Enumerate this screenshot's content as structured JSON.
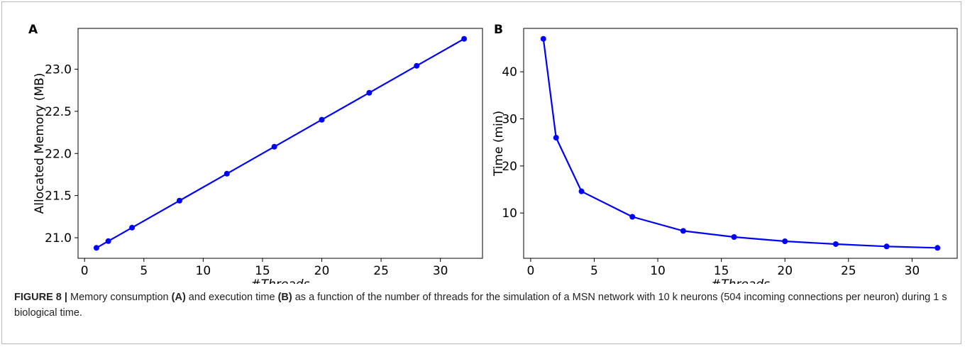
{
  "figure": {
    "caption_label": "FIGURE 8 |",
    "caption_parts": [
      "Memory consumption ",
      "(A)",
      " and execution time ",
      "(B)",
      " as a function of the number of threads for the simulation of a MSN network with 10 k neurons (504 incoming connections per neuron) during 1 s biological time."
    ]
  },
  "colors": {
    "series": "#0000ff",
    "axes": "#000000",
    "frame": "#b8b8b8"
  },
  "chart_data": [
    {
      "panel_label": "A",
      "type": "line",
      "xlabel": "#Threads",
      "ylabel": "Allocated Memory (MB)",
      "x": [
        1,
        2,
        4,
        8,
        12,
        16,
        20,
        24,
        28,
        32
      ],
      "y": [
        20.88,
        20.96,
        21.12,
        21.44,
        21.76,
        22.08,
        22.4,
        22.72,
        23.04,
        23.36
      ],
      "xticks": [
        0,
        5,
        10,
        15,
        20,
        25,
        30
      ],
      "yticks": [
        21.0,
        21.5,
        22.0,
        22.5,
        23.0
      ],
      "ytick_labels": [
        "21.0",
        "21.5",
        "22.0",
        "22.5",
        "23.0"
      ],
      "xlim": [
        -0.55,
        33.55
      ],
      "ylim": [
        20.756,
        23.484
      ],
      "grid": false,
      "marker": "circle"
    },
    {
      "panel_label": "B",
      "type": "line",
      "xlabel": "#Threads",
      "ylabel": "Time (min)",
      "x": [
        1,
        2,
        4,
        8,
        12,
        16,
        20,
        24,
        28,
        32
      ],
      "y": [
        47.0,
        26.0,
        14.6,
        9.2,
        6.2,
        4.9,
        4.0,
        3.4,
        2.9,
        2.6
      ],
      "xticks": [
        0,
        5,
        10,
        15,
        20,
        25,
        30
      ],
      "yticks": [
        10,
        20,
        30,
        40
      ],
      "ytick_labels": [
        "10",
        "20",
        "30",
        "40"
      ],
      "xlim": [
        -0.55,
        33.55
      ],
      "ylim": [
        0.38,
        49.22
      ],
      "grid": false,
      "marker": "circle"
    }
  ]
}
